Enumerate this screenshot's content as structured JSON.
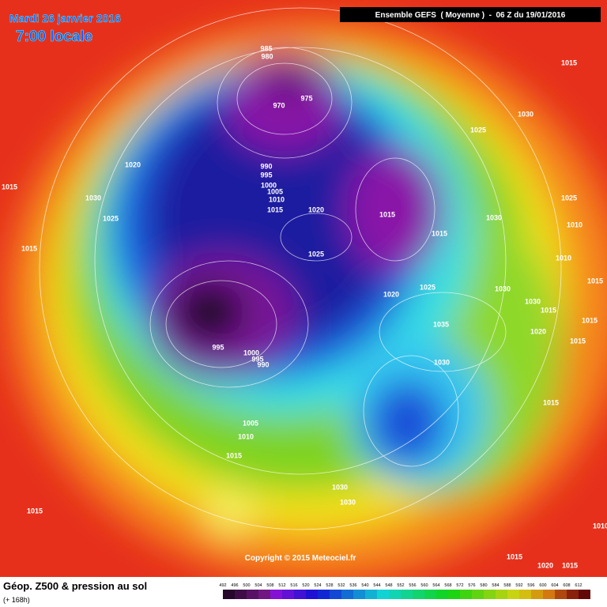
{
  "header": {
    "date": "Mardi 26 janvier 2016",
    "time": "7:00 locale",
    "model": "Ensemble GEFS  ( Moyenne )  -  06 Z du 19/01/2016"
  },
  "map": {
    "copyright": "Copyright © 2015 Meteociel.fr",
    "isobar_labels": [
      "985",
      "980",
      "970",
      "975",
      "1015",
      "1025",
      "1030",
      "1020",
      "1015",
      "1030",
      "1025",
      "1015",
      "990",
      "995",
      "1000",
      "1005",
      "1010",
      "1015",
      "1020",
      "1015",
      "1015",
      "1030",
      "1025",
      "1010",
      "1010",
      "1025",
      "1020",
      "1025",
      "1030",
      "1030",
      "1015",
      "1015",
      "1015",
      "1020",
      "1015",
      "1035",
      "1030",
      "995",
      "1000",
      "995",
      "990",
      "1015",
      "1005",
      "1010",
      "1015",
      "1030",
      "1030",
      "1015",
      "1015",
      "1020",
      "1015",
      "1010"
    ]
  },
  "footer": {
    "title": "Géop. Z500 & pression au sol",
    "lead": "(+ 168h)",
    "scale": [
      492,
      496,
      500,
      504,
      508,
      512,
      516,
      520,
      524,
      528,
      532,
      536,
      540,
      544,
      548,
      552,
      556,
      560,
      564,
      568,
      572,
      576,
      580,
      584,
      588,
      592,
      596,
      600,
      604,
      608,
      612
    ]
  }
}
